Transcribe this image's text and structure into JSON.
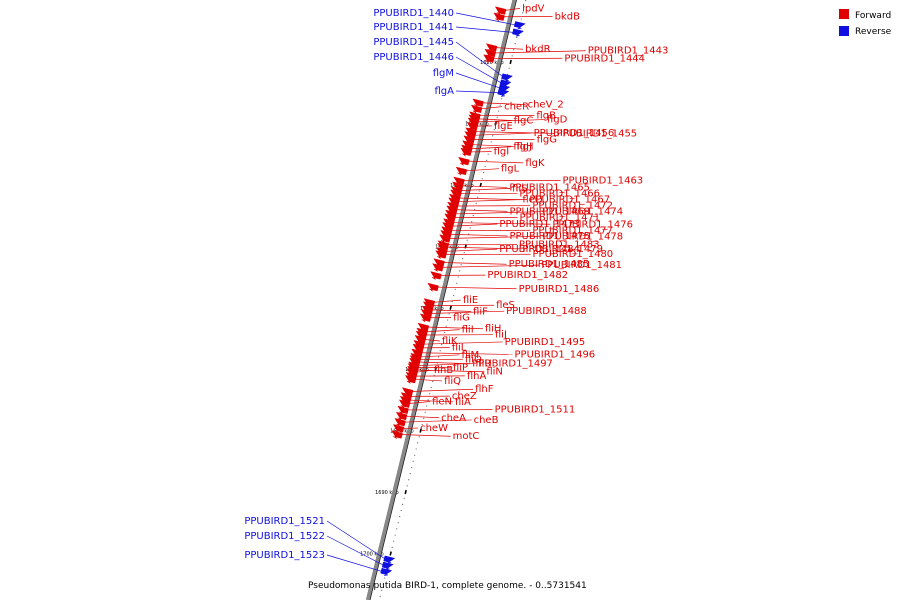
{
  "colors": {
    "forward": "#e00000",
    "reverse": "#1010e0",
    "backbone": "#888888"
  },
  "legend": [
    {
      "label": "Forward",
      "color": "#e00000"
    },
    {
      "label": "Reverse",
      "color": "#1010e0"
    }
  ],
  "caption": "Pseudomonas putida BIRD-1, complete genome. - 0..5731541",
  "ticks": [
    {
      "label": "1620 kbp",
      "pos": 1620
    },
    {
      "label": "1630 kbp",
      "pos": 1630
    },
    {
      "label": "1640 kbp",
      "pos": 1640
    },
    {
      "label": "1650 kbp",
      "pos": 1650
    },
    {
      "label": "1660 kbp",
      "pos": 1660
    },
    {
      "label": "1670 kbp",
      "pos": 1670
    },
    {
      "label": "1680 kbp",
      "pos": 1680
    },
    {
      "label": "1690 kbp",
      "pos": 1690
    },
    {
      "label": "1700 kbp",
      "pos": 1700
    }
  ],
  "reverse_genes": [
    {
      "name": "PPUBIRD1_1440",
      "pos": 1614.0
    },
    {
      "name": "PPUBIRD1_1441",
      "pos": 1615.2
    },
    {
      "name": "PPUBIRD1_1445",
      "pos": 1622.5
    },
    {
      "name": "PPUBIRD1_1446",
      "pos": 1623.5
    },
    {
      "name": "flgM",
      "pos": 1624.3
    },
    {
      "name": "flgA",
      "pos": 1625.0
    },
    {
      "name": "PPUBIRD1_1521",
      "pos": 1701.0
    },
    {
      "name": "PPUBIRD1_1522",
      "pos": 1702.0
    },
    {
      "name": "PPUBIRD1_1523",
      "pos": 1703.0
    }
  ],
  "forward_genes": [
    {
      "name": "lpdV",
      "pos": 1612.5
    },
    {
      "name": "bkdB",
      "pos": 1613.5
    },
    {
      "name": "bkdR",
      "pos": 1618.5
    },
    {
      "name": "PPUBIRD1_1443",
      "pos": 1619.4
    },
    {
      "name": "PPUBIRD1_1444",
      "pos": 1620.3
    },
    {
      "name": "cheV_2",
      "pos": 1627.5
    },
    {
      "name": "cheR",
      "pos": 1628.5
    },
    {
      "name": "flgB",
      "pos": 1629.6
    },
    {
      "name": "flgC",
      "pos": 1630.1
    },
    {
      "name": "flgD",
      "pos": 1630.6
    },
    {
      "name": "flgE",
      "pos": 1631.3
    },
    {
      "name": "PPUBIRD1_1455",
      "pos": 1632.2
    },
    {
      "name": "PPUBIRD1_1456",
      "pos": 1632.8
    },
    {
      "name": "flgG",
      "pos": 1633.5
    },
    {
      "name": "flgH",
      "pos": 1634.3
    },
    {
      "name": "flgJ",
      "pos": 1635.0
    },
    {
      "name": "flgI",
      "pos": 1635.5
    },
    {
      "name": "flgK",
      "pos": 1637.0
    },
    {
      "name": "flgL",
      "pos": 1638.6
    },
    {
      "name": "PPUBIRD1_1463",
      "pos": 1640.2
    },
    {
      "name": "PPUBIRD1_1465",
      "pos": 1641.0
    },
    {
      "name": "fliS",
      "pos": 1641.8
    },
    {
      "name": "PPUBIRD1_1466",
      "pos": 1642.3
    },
    {
      "name": "fleQ",
      "pos": 1643.0
    },
    {
      "name": "PPUBIRD1_1467",
      "pos": 1643.6
    },
    {
      "name": "PPUBIRD1_1472",
      "pos": 1644.3
    },
    {
      "name": "PPUBIRD1_1469",
      "pos": 1644.9
    },
    {
      "name": "PPUBIRD1_1474",
      "pos": 1645.6
    },
    {
      "name": "PPUBIRD1_1471",
      "pos": 1646.2
    },
    {
      "name": "PPUBIRD1_1476",
      "pos": 1647.0
    },
    {
      "name": "PPUBIRD1_1473",
      "pos": 1647.6
    },
    {
      "name": "PPUBIRD1_1477",
      "pos": 1648.3
    },
    {
      "name": "PPUBIRD1_1475",
      "pos": 1648.9
    },
    {
      "name": "PPUBIRD1_1478",
      "pos": 1649.6
    },
    {
      "name": "PPUBIRD1_1483",
      "pos": 1650.6
    },
    {
      "name": "PPUBIRD1_1479",
      "pos": 1651.0
    },
    {
      "name": "PPUBIRD1_1484",
      "pos": 1651.7
    },
    {
      "name": "PPUBIRD1_1480",
      "pos": 1652.2
    },
    {
      "name": "PPUBIRD1_1485",
      "pos": 1653.5
    },
    {
      "name": "PPUBIRD1_1481",
      "pos": 1654.3
    },
    {
      "name": "PPUBIRD1_1482",
      "pos": 1655.6
    },
    {
      "name": "PPUBIRD1_1486",
      "pos": 1657.5
    },
    {
      "name": "fliE",
      "pos": 1660.0
    },
    {
      "name": "fleS",
      "pos": 1660.5
    },
    {
      "name": "fliF",
      "pos": 1661.2
    },
    {
      "name": "PPUBIRD1_1488",
      "pos": 1661.8
    },
    {
      "name": "fliG",
      "pos": 1662.5
    },
    {
      "name": "fliH",
      "pos": 1664.0
    },
    {
      "name": "fliI",
      "pos": 1664.8
    },
    {
      "name": "fliJ",
      "pos": 1665.3
    },
    {
      "name": "fliK",
      "pos": 1666.0
    },
    {
      "name": "PPUBIRD1_1495",
      "pos": 1666.8
    },
    {
      "name": "fliL",
      "pos": 1667.4
    },
    {
      "name": "PPUBIRD1_1496",
      "pos": 1668.2
    },
    {
      "name": "fliM",
      "pos": 1668.9
    },
    {
      "name": "fliO",
      "pos": 1669.3
    },
    {
      "name": "PPUBIRD1_1497",
      "pos": 1669.7
    },
    {
      "name": "fliR",
      "pos": 1670.3
    },
    {
      "name": "fliP",
      "pos": 1670.6
    },
    {
      "name": "fliN",
      "pos": 1671.0
    },
    {
      "name": "flhB",
      "pos": 1671.4
    },
    {
      "name": "flhA",
      "pos": 1672.0
    },
    {
      "name": "fliQ",
      "pos": 1672.5
    },
    {
      "name": "flhF",
      "pos": 1674.5
    },
    {
      "name": "cheZ",
      "pos": 1675.3
    },
    {
      "name": "fliA",
      "pos": 1675.9
    },
    {
      "name": "fleN",
      "pos": 1676.5
    },
    {
      "name": "PPUBIRD1_1511",
      "pos": 1677.5
    },
    {
      "name": "cheA",
      "pos": 1678.5
    },
    {
      "name": "cheB",
      "pos": 1679.5
    },
    {
      "name": "cheW",
      "pos": 1680.5
    },
    {
      "name": "motC",
      "pos": 1681.5
    }
  ]
}
